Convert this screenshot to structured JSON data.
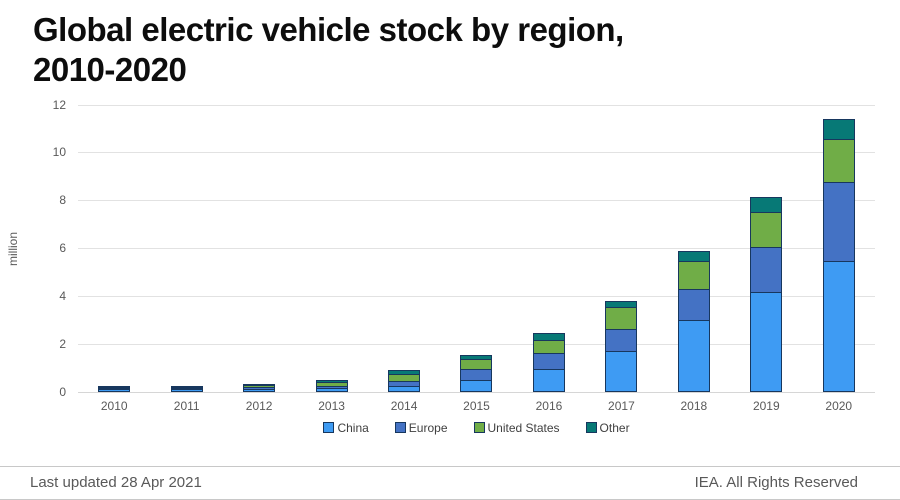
{
  "header": {
    "title_line1": "Global electric vehicle stock by region,",
    "title_line2": "2010-2020"
  },
  "footer": {
    "left": "Last updated 28 Apr 2021",
    "right": "IEA. All Rights Reserved"
  },
  "chart_data": {
    "type": "bar",
    "stacked": true,
    "title": "Global electric vehicle stock by region, 2010-2020",
    "xlabel": "",
    "ylabel": "million",
    "ylim": [
      0,
      12
    ],
    "yticks": [
      0,
      2,
      4,
      6,
      8,
      10,
      12
    ],
    "grid": true,
    "legend_position": "bottom",
    "categories": [
      "2010",
      "2011",
      "2012",
      "2013",
      "2014",
      "2015",
      "2016",
      "2017",
      "2018",
      "2019",
      "2020"
    ],
    "series": [
      {
        "name": "China",
        "color": "#3e9bf3",
        "values": [
          0.01,
          0.03,
          0.04,
          0.05,
          0.13,
          0.4,
          0.87,
          1.6,
          2.9,
          4.08,
          5.38
        ]
      },
      {
        "name": "Europe",
        "color": "#4472c4",
        "values": [
          0.01,
          0.03,
          0.06,
          0.09,
          0.23,
          0.45,
          0.66,
          0.95,
          1.3,
          1.87,
          3.3
        ]
      },
      {
        "name": "United States",
        "color": "#70ad47",
        "values": [
          0.02,
          0.02,
          0.07,
          0.17,
          0.3,
          0.43,
          0.56,
          0.9,
          1.17,
          1.48,
          1.79
        ]
      },
      {
        "name": "Other",
        "color": "#077976",
        "values": [
          0.02,
          0.02,
          0.06,
          0.1,
          0.14,
          0.15,
          0.28,
          0.25,
          0.43,
          0.6,
          0.83
        ]
      }
    ],
    "totals": [
      0.06,
      0.1,
      0.23,
      0.41,
      0.8,
      1.43,
      2.37,
      3.7,
      5.8,
      8.03,
      11.3
    ],
    "colors": {
      "segment_border": "#17375e",
      "gridline": "#e2e2e2",
      "axis_line": "#d6d6d6",
      "tick_text": "#595959"
    }
  }
}
